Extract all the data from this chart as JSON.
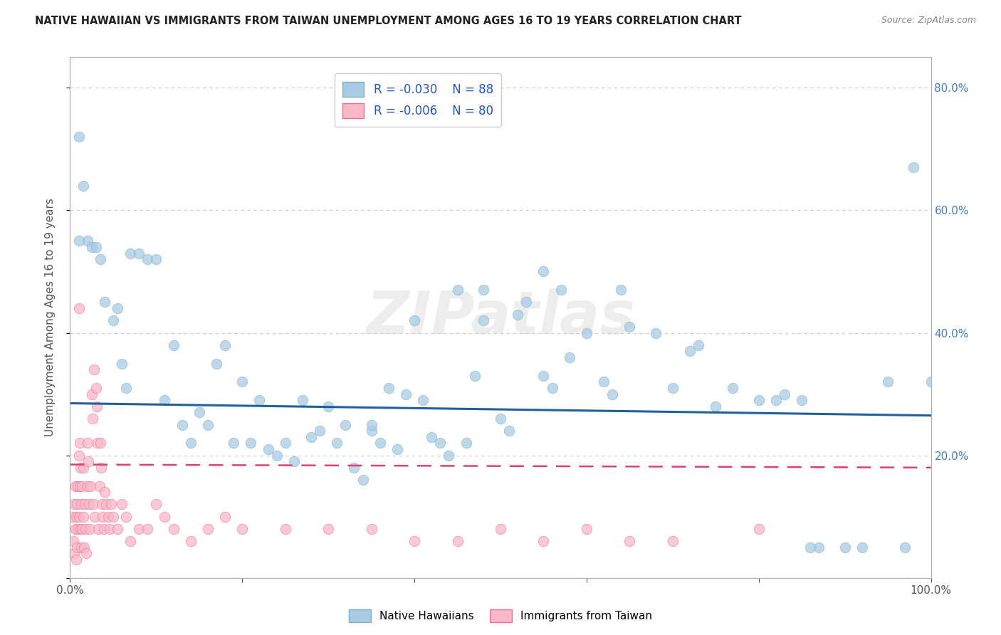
{
  "title": "NATIVE HAWAIIAN VS IMMIGRANTS FROM TAIWAN UNEMPLOYMENT AMONG AGES 16 TO 19 YEARS CORRELATION CHART",
  "source": "Source: ZipAtlas.com",
  "ylabel": "Unemployment Among Ages 16 to 19 years",
  "xlim": [
    0,
    1
  ],
  "ylim": [
    0,
    0.85
  ],
  "legend_r1": "R = -0.030",
  "legend_n1": "N = 88",
  "legend_r2": "R = -0.006",
  "legend_n2": "N = 80",
  "blue_color": "#a8cce4",
  "blue_edge": "#7bafd4",
  "pink_color": "#f9b8c8",
  "pink_edge": "#f07090",
  "trend_blue": "#2060a0",
  "trend_pink": "#e04070",
  "watermark": "ZIPatlas",
  "blue_trend_start": 0.285,
  "blue_trend_end": 0.265,
  "pink_trend_start": 0.185,
  "pink_trend_end": 0.18,
  "blue_x": [
    0.01,
    0.015,
    0.02,
    0.01,
    0.025,
    0.03,
    0.035,
    0.04,
    0.05,
    0.055,
    0.06,
    0.065,
    0.07,
    0.08,
    0.09,
    0.1,
    0.11,
    0.12,
    0.13,
    0.14,
    0.15,
    0.16,
    0.17,
    0.18,
    0.19,
    0.2,
    0.21,
    0.22,
    0.23,
    0.24,
    0.25,
    0.26,
    0.27,
    0.28,
    0.29,
    0.3,
    0.31,
    0.32,
    0.33,
    0.34,
    0.35,
    0.36,
    0.37,
    0.38,
    0.39,
    0.4,
    0.41,
    0.42,
    0.43,
    0.44,
    0.45,
    0.46,
    0.47,
    0.48,
    0.5,
    0.51,
    0.52,
    0.53,
    0.55,
    0.56,
    0.57,
    0.58,
    0.6,
    0.62,
    0.63,
    0.65,
    0.68,
    0.7,
    0.72,
    0.75,
    0.77,
    0.8,
    0.82,
    0.83,
    0.85,
    0.87,
    0.9,
    0.92,
    0.95,
    0.97,
    0.98,
    1.0,
    0.35,
    0.48,
    0.55,
    0.64,
    0.73,
    0.86
  ],
  "blue_y": [
    0.72,
    0.64,
    0.55,
    0.55,
    0.54,
    0.54,
    0.52,
    0.45,
    0.42,
    0.44,
    0.35,
    0.31,
    0.53,
    0.53,
    0.52,
    0.52,
    0.29,
    0.38,
    0.25,
    0.22,
    0.27,
    0.25,
    0.35,
    0.38,
    0.22,
    0.32,
    0.22,
    0.29,
    0.21,
    0.2,
    0.22,
    0.19,
    0.29,
    0.23,
    0.24,
    0.28,
    0.22,
    0.25,
    0.18,
    0.16,
    0.24,
    0.22,
    0.31,
    0.21,
    0.3,
    0.42,
    0.29,
    0.23,
    0.22,
    0.2,
    0.47,
    0.22,
    0.33,
    0.42,
    0.26,
    0.24,
    0.43,
    0.45,
    0.33,
    0.31,
    0.47,
    0.36,
    0.4,
    0.32,
    0.3,
    0.41,
    0.4,
    0.31,
    0.37,
    0.28,
    0.31,
    0.29,
    0.29,
    0.3,
    0.29,
    0.05,
    0.05,
    0.05,
    0.32,
    0.05,
    0.67,
    0.32,
    0.25,
    0.47,
    0.5,
    0.47,
    0.38,
    0.05
  ],
  "pink_x": [
    0.003,
    0.004,
    0.005,
    0.005,
    0.006,
    0.006,
    0.007,
    0.007,
    0.008,
    0.008,
    0.009,
    0.009,
    0.01,
    0.01,
    0.011,
    0.011,
    0.012,
    0.012,
    0.013,
    0.013,
    0.014,
    0.014,
    0.015,
    0.015,
    0.016,
    0.017,
    0.018,
    0.019,
    0.02,
    0.02,
    0.021,
    0.022,
    0.023,
    0.024,
    0.025,
    0.026,
    0.027,
    0.028,
    0.029,
    0.03,
    0.031,
    0.032,
    0.033,
    0.034,
    0.035,
    0.036,
    0.037,
    0.038,
    0.039,
    0.04,
    0.042,
    0.044,
    0.046,
    0.048,
    0.05,
    0.055,
    0.06,
    0.065,
    0.07,
    0.08,
    0.09,
    0.1,
    0.11,
    0.12,
    0.14,
    0.16,
    0.18,
    0.2,
    0.25,
    0.3,
    0.35,
    0.4,
    0.45,
    0.5,
    0.55,
    0.6,
    0.65,
    0.7,
    0.8,
    0.01
  ],
  "pink_y": [
    0.1,
    0.06,
    0.04,
    0.12,
    0.08,
    0.15,
    0.03,
    0.1,
    0.05,
    0.12,
    0.08,
    0.15,
    0.1,
    0.2,
    0.15,
    0.22,
    0.08,
    0.18,
    0.05,
    0.12,
    0.08,
    0.15,
    0.1,
    0.18,
    0.05,
    0.12,
    0.08,
    0.04,
    0.15,
    0.22,
    0.19,
    0.12,
    0.08,
    0.15,
    0.3,
    0.26,
    0.12,
    0.34,
    0.1,
    0.31,
    0.28,
    0.22,
    0.08,
    0.15,
    0.22,
    0.18,
    0.12,
    0.1,
    0.08,
    0.14,
    0.12,
    0.1,
    0.08,
    0.12,
    0.1,
    0.08,
    0.12,
    0.1,
    0.06,
    0.08,
    0.08,
    0.12,
    0.1,
    0.08,
    0.06,
    0.08,
    0.1,
    0.08,
    0.08,
    0.08,
    0.08,
    0.06,
    0.06,
    0.08,
    0.06,
    0.08,
    0.06,
    0.06,
    0.08,
    0.44
  ]
}
